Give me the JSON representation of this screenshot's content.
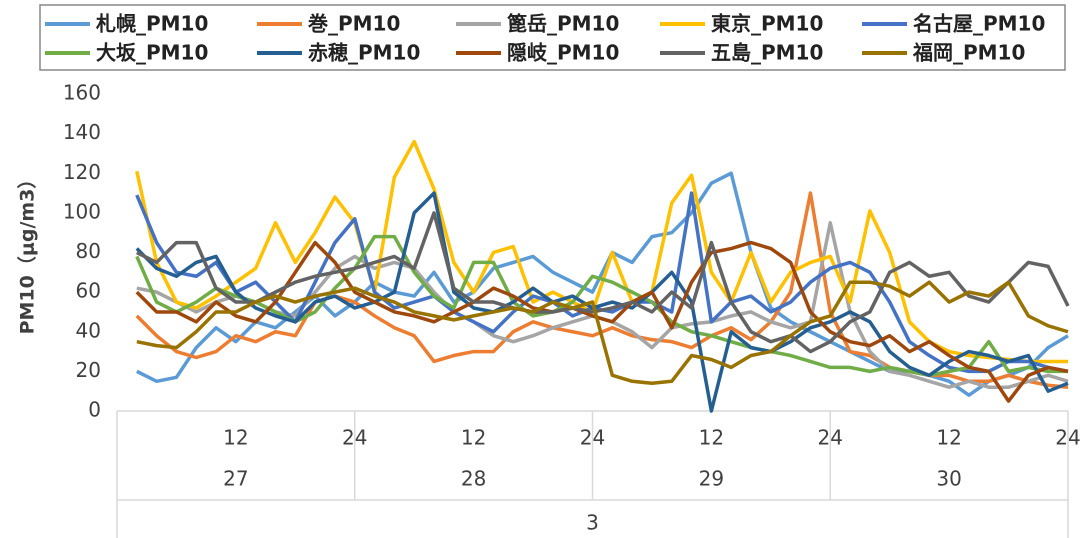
{
  "chart_data": {
    "type": "line",
    "y_label": "PM10（μg/m3）",
    "categories": [
      null,
      null,
      null,
      null,
      null,
      "12",
      null,
      null,
      null,
      null,
      null,
      "24",
      null,
      null,
      null,
      null,
      null,
      "12",
      null,
      null,
      null,
      null,
      null,
      "24",
      null,
      null,
      null,
      null,
      null,
      "12",
      null,
      null,
      null,
      null,
      null,
      "24",
      null,
      null,
      null,
      null,
      null,
      "12",
      null,
      null,
      null,
      null,
      null,
      "24"
    ],
    "day_labels": [
      "27",
      "28",
      "29",
      "30"
    ],
    "month_label": "3",
    "ylim": [
      0,
      160
    ],
    "yticks": [
      0,
      20,
      40,
      60,
      80,
      100,
      120,
      140,
      160
    ],
    "grid": false,
    "legend": "top",
    "series": [
      {
        "name": "札幌_PM10",
        "color": "#5b9bd5",
        "values": [
          20,
          15,
          17,
          32,
          42,
          35,
          45,
          42,
          50,
          58,
          48,
          55,
          65,
          60,
          58,
          70,
          55,
          60,
          72,
          75,
          78,
          70,
          65,
          60,
          80,
          75,
          88,
          90,
          100,
          115,
          120,
          80,
          52,
          45,
          40,
          35,
          30,
          25,
          20,
          20,
          18,
          15,
          8,
          15,
          18,
          22,
          32,
          38
        ]
      },
      {
        "name": "巻_PM10",
        "color": "#ed7d31",
        "values": [
          48,
          38,
          30,
          27,
          30,
          38,
          35,
          40,
          38,
          55,
          58,
          55,
          48,
          42,
          38,
          25,
          28,
          30,
          30,
          40,
          45,
          42,
          40,
          38,
          42,
          38,
          36,
          35,
          32,
          38,
          42,
          36,
          45,
          60,
          110,
          50,
          30,
          28,
          22,
          20,
          18,
          18,
          15,
          15,
          18,
          15,
          13,
          12
        ]
      },
      {
        "name": "篦岳_PM10",
        "color": "#a5a5a5",
        "values": [
          62,
          60,
          55,
          50,
          55,
          58,
          55,
          50,
          48,
          60,
          72,
          78,
          72,
          75,
          72,
          60,
          50,
          45,
          38,
          35,
          38,
          42,
          45,
          48,
          45,
          40,
          32,
          42,
          44,
          45,
          48,
          50,
          45,
          42,
          45,
          95,
          50,
          30,
          20,
          18,
          15,
          12,
          15,
          12,
          12,
          15,
          18,
          15
        ]
      },
      {
        "name": "東京_PM10",
        "color": "#ffc000",
        "values": [
          121,
          75,
          55,
          52,
          58,
          65,
          72,
          95,
          75,
          90,
          108,
          95,
          60,
          118,
          136,
          112,
          75,
          60,
          80,
          83,
          55,
          60,
          55,
          50,
          80,
          55,
          60,
          105,
          119,
          70,
          55,
          80,
          55,
          70,
          75,
          78,
          55,
          101,
          80,
          45,
          35,
          30,
          28,
          27,
          26,
          25,
          25,
          25
        ]
      },
      {
        "name": "名古屋_PM10",
        "color": "#4472c4",
        "values": [
          109,
          85,
          70,
          68,
          75,
          60,
          65,
          55,
          45,
          65,
          85,
          97,
          60,
          52,
          55,
          58,
          50,
          45,
          40,
          50,
          58,
          55,
          48,
          52,
          50,
          55,
          55,
          50,
          110,
          45,
          55,
          58,
          50,
          55,
          65,
          72,
          75,
          70,
          55,
          35,
          28,
          22,
          20,
          20,
          25,
          25,
          22,
          20
        ]
      },
      {
        "name": "大坂_PM10",
        "color": "#70ad47",
        "values": [
          78,
          55,
          50,
          55,
          62,
          58,
          55,
          50,
          45,
          50,
          62,
          72,
          88,
          88,
          70,
          58,
          52,
          75,
          75,
          55,
          48,
          50,
          55,
          68,
          65,
          60,
          55,
          45,
          40,
          38,
          35,
          32,
          30,
          28,
          25,
          22,
          22,
          20,
          22,
          20,
          18,
          20,
          22,
          35,
          20,
          22,
          20,
          20
        ]
      },
      {
        "name": "赤穂_PM10",
        "color": "#255e91",
        "values": [
          82,
          72,
          68,
          75,
          78,
          60,
          52,
          48,
          45,
          55,
          58,
          52,
          55,
          60,
          100,
          110,
          60,
          52,
          50,
          55,
          62,
          55,
          58,
          52,
          55,
          52,
          60,
          70,
          55,
          0,
          40,
          32,
          30,
          35,
          42,
          45,
          50,
          45,
          30,
          22,
          18,
          25,
          30,
          28,
          25,
          28,
          10,
          14
        ]
      },
      {
        "name": "隠岐_PM10",
        "color": "#9e480e",
        "values": [
          60,
          50,
          50,
          45,
          55,
          48,
          45,
          55,
          70,
          85,
          75,
          60,
          55,
          50,
          48,
          45,
          50,
          55,
          62,
          58,
          52,
          50,
          52,
          48,
          45,
          55,
          60,
          42,
          65,
          80,
          82,
          85,
          82,
          75,
          50,
          40,
          35,
          33,
          38,
          30,
          35,
          28,
          22,
          20,
          5,
          18,
          22,
          20
        ]
      },
      {
        "name": "五島_PM10",
        "color": "#636363",
        "values": [
          80,
          75,
          85,
          85,
          62,
          55,
          55,
          60,
          65,
          68,
          70,
          72,
          75,
          78,
          72,
          100,
          62,
          55,
          55,
          52,
          50,
          50,
          52,
          50,
          52,
          55,
          50,
          60,
          52,
          85,
          55,
          40,
          35,
          38,
          30,
          35,
          45,
          50,
          70,
          75,
          68,
          70,
          58,
          55,
          65,
          75,
          73,
          53
        ]
      },
      {
        "name": "福岡_PM10",
        "color": "#997300",
        "values": [
          35,
          33,
          32,
          40,
          50,
          50,
          55,
          58,
          55,
          58,
          60,
          62,
          58,
          55,
          50,
          48,
          46,
          48,
          50,
          52,
          50,
          55,
          52,
          55,
          18,
          15,
          14,
          15,
          28,
          26,
          22,
          28,
          30,
          38,
          45,
          48,
          65,
          65,
          63,
          58,
          65,
          55,
          60,
          58,
          65,
          48,
          43,
          40
        ]
      }
    ]
  }
}
